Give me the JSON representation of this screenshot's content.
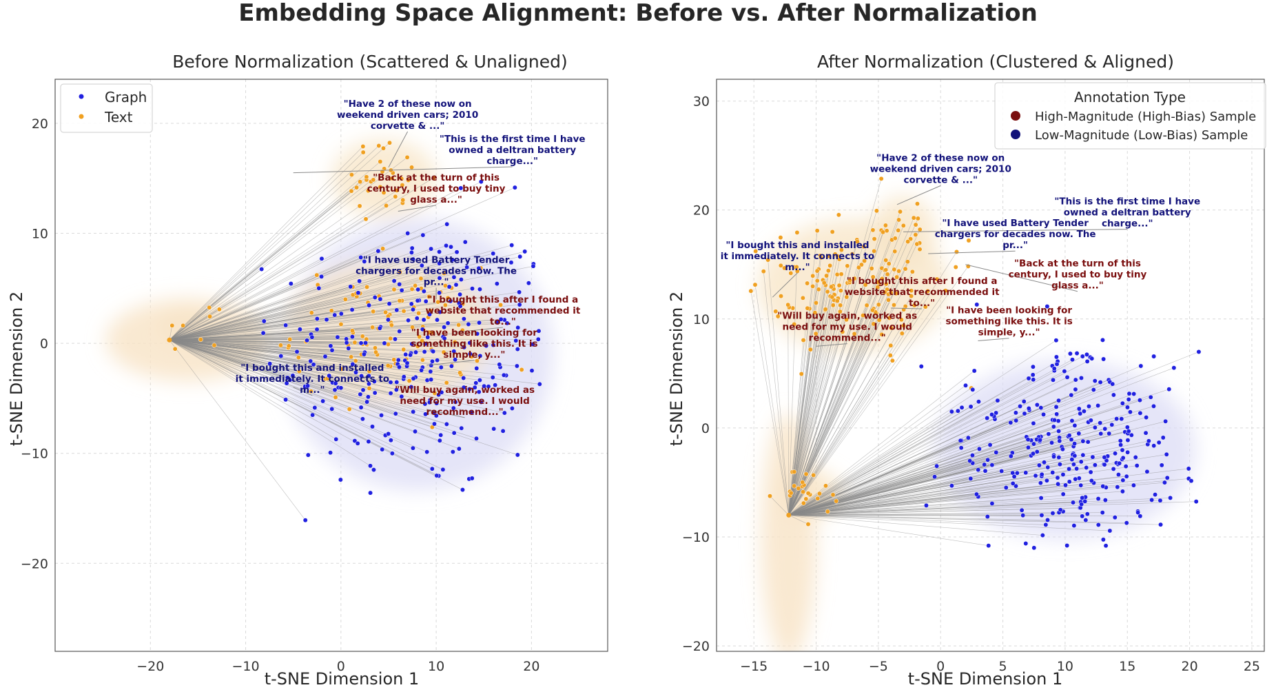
{
  "figure": {
    "title": "Embedding Space Alignment: Before vs. After Normalization"
  },
  "colors": {
    "graph": "#2020e0",
    "text": "#f0a020",
    "high_bias": "#7a0e0e",
    "low_bias": "#12127a",
    "link": "#888888",
    "kde_graph": "#dcdcf5",
    "kde_text": "#f7e4c6",
    "grid": "#d9d9d9",
    "axis": "#555555"
  },
  "chart_data": [
    {
      "type": "scatter",
      "title": "Before Normalization (Scattered & Unaligned)",
      "xlabel": "t-SNE Dimension 1",
      "ylabel": "t-SNE Dimension 2",
      "xlim": [
        -30,
        28
      ],
      "ylim": [
        -28,
        24
      ],
      "xticks": [
        -20,
        -10,
        0,
        10,
        20
      ],
      "yticks": [
        -20,
        -10,
        0,
        10,
        20
      ],
      "grid": true,
      "legend": {
        "placement": "top-left",
        "entries": [
          "Graph",
          "Text"
        ]
      },
      "hub": {
        "x": -18,
        "y": 0.3
      },
      "series": [
        {
          "name": "Graph",
          "cluster": {
            "cx": 8,
            "cy": -1,
            "sx": 7.5,
            "sy": 6.5,
            "xmin": -10,
            "xmax": 21,
            "ymin": -20,
            "ymax": 16,
            "count": 280
          }
        },
        {
          "name": "Text",
          "clusters": [
            {
              "cx": 4.5,
              "cy": 15,
              "sx": 2.5,
              "sy": 1.6,
              "count": 35
            },
            {
              "cx": 5,
              "cy": 1,
              "sx": 5,
              "sy": 3,
              "count": 110
            },
            {
              "cx": -16,
              "cy": 1.5,
              "sx": 1.5,
              "sy": 0.8,
              "count": 8
            }
          ]
        }
      ],
      "annotations": [
        {
          "lines": [
            "\"Have 2 of these now on",
            "weekend driven cars; 2010",
            "corvette & ...\""
          ],
          "x": 7,
          "y": 20.5,
          "kind": "low",
          "target": [
            5,
            16
          ]
        },
        {
          "lines": [
            "\"This is the first time I have",
            "owned a deltran battery",
            "charge...\""
          ],
          "x": 18,
          "y": 17.3,
          "kind": "low",
          "target": [
            -5,
            15.5
          ]
        },
        {
          "lines": [
            "\"Back at the turn of this",
            "century, I used to buy tiny",
            "glass a...\""
          ],
          "x": 10,
          "y": 13.8,
          "kind": "high",
          "target": [
            6,
            12
          ]
        },
        {
          "lines": [
            "\"I have used Battery Tender",
            "chargers for decades now.  The",
            "pr...\""
          ],
          "x": 10,
          "y": 6.3,
          "kind": "low",
          "target": [
            10,
            4
          ]
        },
        {
          "lines": [
            "\"I bought this after I found a",
            "website that recommended it",
            "to...\""
          ],
          "x": 17,
          "y": 2.7,
          "kind": "high",
          "target": [
            12,
            1
          ]
        },
        {
          "lines": [
            "\"I have been looking for",
            "something like this. It is",
            "simple, y...\""
          ],
          "x": 14,
          "y": -0.3,
          "kind": "high",
          "target": [
            9,
            -2
          ]
        },
        {
          "lines": [
            "\"I bought this and installed",
            "it immediately. It connects to",
            "m...\""
          ],
          "x": -3,
          "y": -3.5,
          "kind": "low",
          "target": [
            -5,
            -4
          ]
        },
        {
          "lines": [
            "\"Will buy again, worked as",
            "need for my use. I would",
            "recommend...\""
          ],
          "x": 13,
          "y": -5.5,
          "kind": "high",
          "target": [
            9,
            -6
          ]
        }
      ]
    },
    {
      "type": "scatter",
      "title": "After Normalization (Clustered & Aligned)",
      "xlabel": "t-SNE Dimension 1",
      "ylabel": "t-SNE Dimension 2",
      "xlim": [
        -18,
        26
      ],
      "ylim": [
        -20.5,
        32
      ],
      "xticks": [
        -15,
        -10,
        -5,
        0,
        5,
        10,
        15,
        20,
        25
      ],
      "yticks": [
        -20,
        -10,
        0,
        10,
        20,
        30
      ],
      "grid": true,
      "legend": {
        "placement": "top-right",
        "title": "Annotation Type",
        "entries": [
          "High-Magnitude (High-Bias) Sample",
          "Low-Magnitude (Low-Bias) Sample"
        ]
      },
      "hub": {
        "x": -12.2,
        "y": -8
      },
      "series": [
        {
          "name": "Graph",
          "cluster": {
            "cx": 10,
            "cy": -2,
            "sx": 5.5,
            "sy": 4.3,
            "xmin": -2,
            "xmax": 21,
            "ymin": -12,
            "ymax": 12,
            "count": 300
          }
        },
        {
          "name": "Text",
          "clusters": [
            {
              "cx": -7,
              "cy": 13,
              "sx": 3.5,
              "sy": 2.8,
              "count": 150
            },
            {
              "cx": -3,
              "cy": 18,
              "sx": 1.2,
              "sy": 1.5,
              "count": 25
            },
            {
              "cx": -10.5,
              "cy": -6,
              "sx": 1.2,
              "sy": 1,
              "count": 25
            }
          ]
        }
      ],
      "annotations": [
        {
          "lines": [
            "\"Have 2 of these now on",
            "weekend driven cars; 2010",
            "corvette & ...\""
          ],
          "x": 0,
          "y": 23.5,
          "kind": "low",
          "target": [
            -3.5,
            20.5
          ]
        },
        {
          "lines": [
            "\"This is the first time I have",
            "owned a deltran battery",
            "charge...\""
          ],
          "x": 15,
          "y": 19.5,
          "kind": "low",
          "target": [
            -3,
            18
          ]
        },
        {
          "lines": [
            "\"I have used Battery Tender",
            "chargers for decades now.  The",
            "pr...\""
          ],
          "x": 6,
          "y": 17.5,
          "kind": "low",
          "target": [
            -1,
            16
          ]
        },
        {
          "lines": [
            "\"I bought this and installed",
            "it immediately. It connects to",
            "m...\""
          ],
          "x": -11.5,
          "y": 15.5,
          "kind": "low",
          "target": [
            -13.5,
            12
          ]
        },
        {
          "lines": [
            "\"Back at the turn of this",
            "century, I used to buy tiny",
            "glass a...\""
          ],
          "x": 11,
          "y": 13.8,
          "kind": "high",
          "target": [
            2,
            15
          ]
        },
        {
          "lines": [
            "\"I bought this after I found a",
            "website that recommended it",
            "to...\""
          ],
          "x": -1.5,
          "y": 12.2,
          "kind": "high",
          "target": [
            -4,
            11
          ]
        },
        {
          "lines": [
            "\"Will buy again, worked as",
            "need for my use. I would",
            "recommend...\""
          ],
          "x": -7.5,
          "y": 9,
          "kind": "high",
          "target": [
            -10,
            7.5
          ]
        },
        {
          "lines": [
            "\"I have been looking for",
            "something like this. It is",
            "simple, y...\""
          ],
          "x": 5.5,
          "y": 9.5,
          "kind": "high",
          "target": [
            3,
            8
          ]
        }
      ]
    }
  ]
}
